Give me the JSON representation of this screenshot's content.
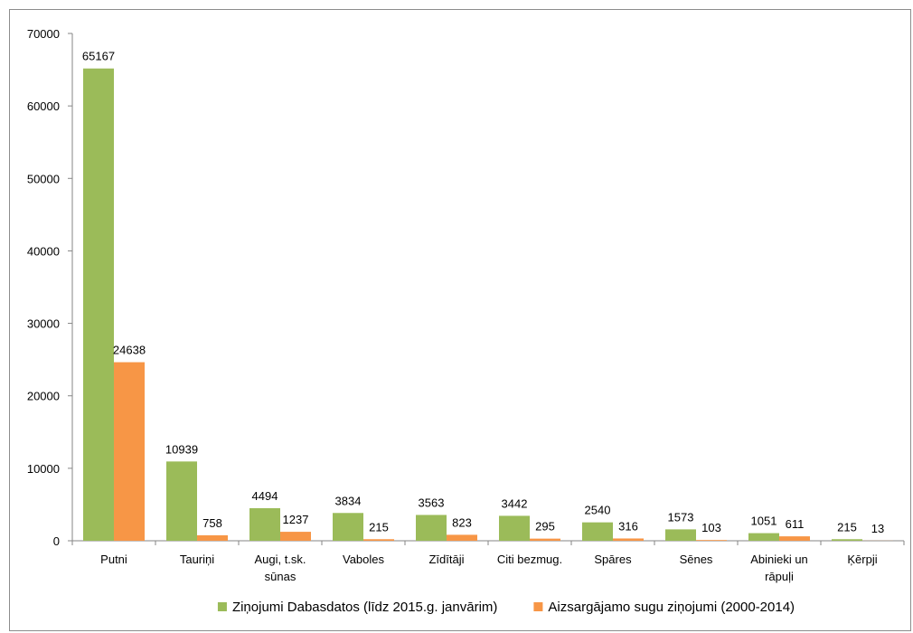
{
  "chart_data": {
    "type": "bar",
    "categories": [
      [
        "Putni"
      ],
      [
        "Tauriņi"
      ],
      [
        "Augi, t.sk.",
        "sūnas"
      ],
      [
        "Vaboles"
      ],
      [
        "Zīdītāji"
      ],
      [
        "Citi bezmug."
      ],
      [
        "Spāres"
      ],
      [
        "Sēnes"
      ],
      [
        "Abinieki un",
        "rāpuļi"
      ],
      [
        "Ķērpji"
      ]
    ],
    "series": [
      {
        "name": "Ziņojumi Dabasdatos (līdz 2015.g. janvārim)",
        "color": "#9bbb59",
        "values": [
          65167,
          10939,
          4494,
          3834,
          3563,
          3442,
          2540,
          1573,
          1051,
          215
        ]
      },
      {
        "name": "Aizsargājamo sugu ziņojumi (2000-2014)",
        "color": "#f79646",
        "values": [
          24638,
          758,
          1237,
          215,
          823,
          295,
          316,
          103,
          611,
          13
        ]
      }
    ],
    "ylim": [
      0,
      70000
    ],
    "yticks": [
      0,
      10000,
      20000,
      30000,
      40000,
      50000,
      60000,
      70000
    ],
    "grid": false,
    "legend_position": "bottom"
  }
}
